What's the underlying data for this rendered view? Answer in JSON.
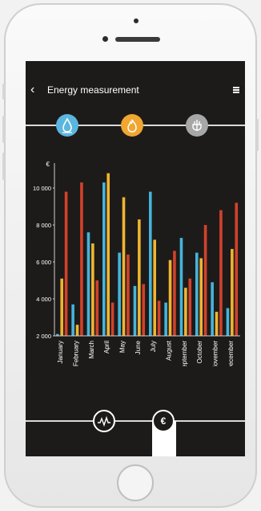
{
  "header": {
    "title": "Energy measurement",
    "back_icon": "chevron-left-icon",
    "menu_icon": "grid-icon"
  },
  "modes": [
    {
      "name": "water-drop-icon",
      "color": "#5bb6df"
    },
    {
      "name": "flame-icon",
      "color": "#f0a630"
    },
    {
      "name": "power-plug-icon",
      "color": "#a7a7a7"
    }
  ],
  "chart_data": {
    "type": "bar",
    "ylabel": "€",
    "ylim": [
      2000,
      11000
    ],
    "yticks": [
      "2 000",
      "4 000",
      "6 000",
      "8 000",
      "10 000"
    ],
    "categories": [
      "January",
      "February",
      "March",
      "April",
      "May",
      "June",
      "July",
      "August",
      "September",
      "October",
      "November",
      "December"
    ],
    "series": [
      {
        "color": "#45b4dd",
        "values": [
          2100,
          3700,
          7600,
          10300,
          6500,
          4700,
          9800,
          3800,
          7300,
          6500,
          4900,
          3500
        ]
      },
      {
        "color": "#efb530",
        "values": [
          5100,
          2600,
          7000,
          10800,
          9500,
          8300,
          7200,
          6100,
          4600,
          6200,
          3300,
          6700
        ]
      },
      {
        "color": "#d2412b",
        "values": [
          9800,
          10300,
          5000,
          3800,
          6400,
          4800,
          3900,
          6600,
          5100,
          8000,
          8800,
          9200
        ]
      }
    ]
  },
  "tabs": [
    {
      "name": "meter-icon",
      "active": false
    },
    {
      "name": "euro-icon",
      "label": "€",
      "active": true
    }
  ]
}
